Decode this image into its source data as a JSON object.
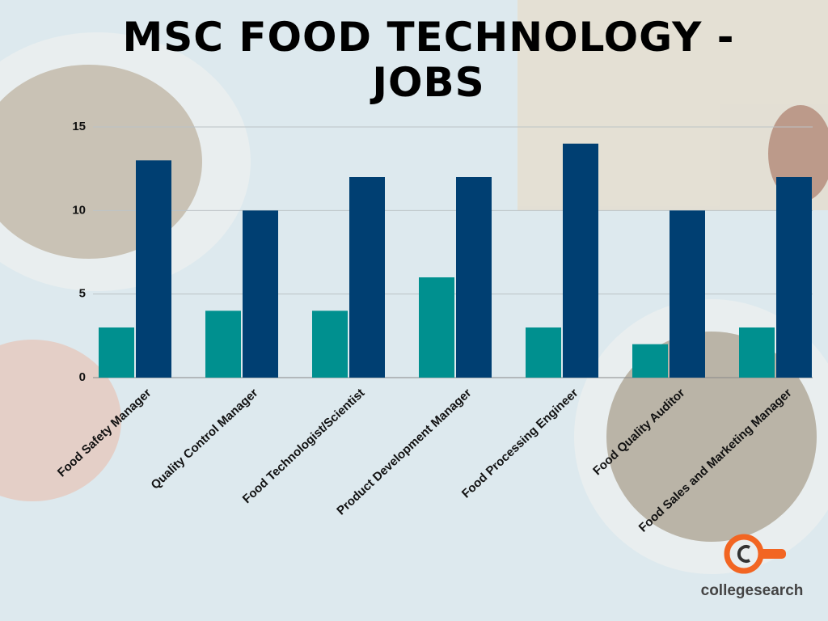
{
  "chart_data": {
    "type": "bar",
    "title": "MSC FOOD TECHNOLOGY - JOBS",
    "categories": [
      "Food Safety Manager",
      "Quality Control Manager",
      "Food Technologist/Scientist",
      "Product Development Manager",
      "Food Processing Engineer",
      "Food Quality Auditor",
      "Food Sales and Marketing Manager"
    ],
    "series": [
      {
        "color": "#00908f",
        "values": [
          3,
          4,
          4,
          6,
          3,
          2,
          3
        ]
      },
      {
        "color": "#003f72",
        "values": [
          13,
          10,
          12,
          12,
          14,
          10,
          12
        ]
      }
    ],
    "ylim": [
      0,
      15
    ],
    "yticks": [
      0,
      5,
      10,
      15
    ],
    "grid": true
  },
  "logo": "collegesearch"
}
